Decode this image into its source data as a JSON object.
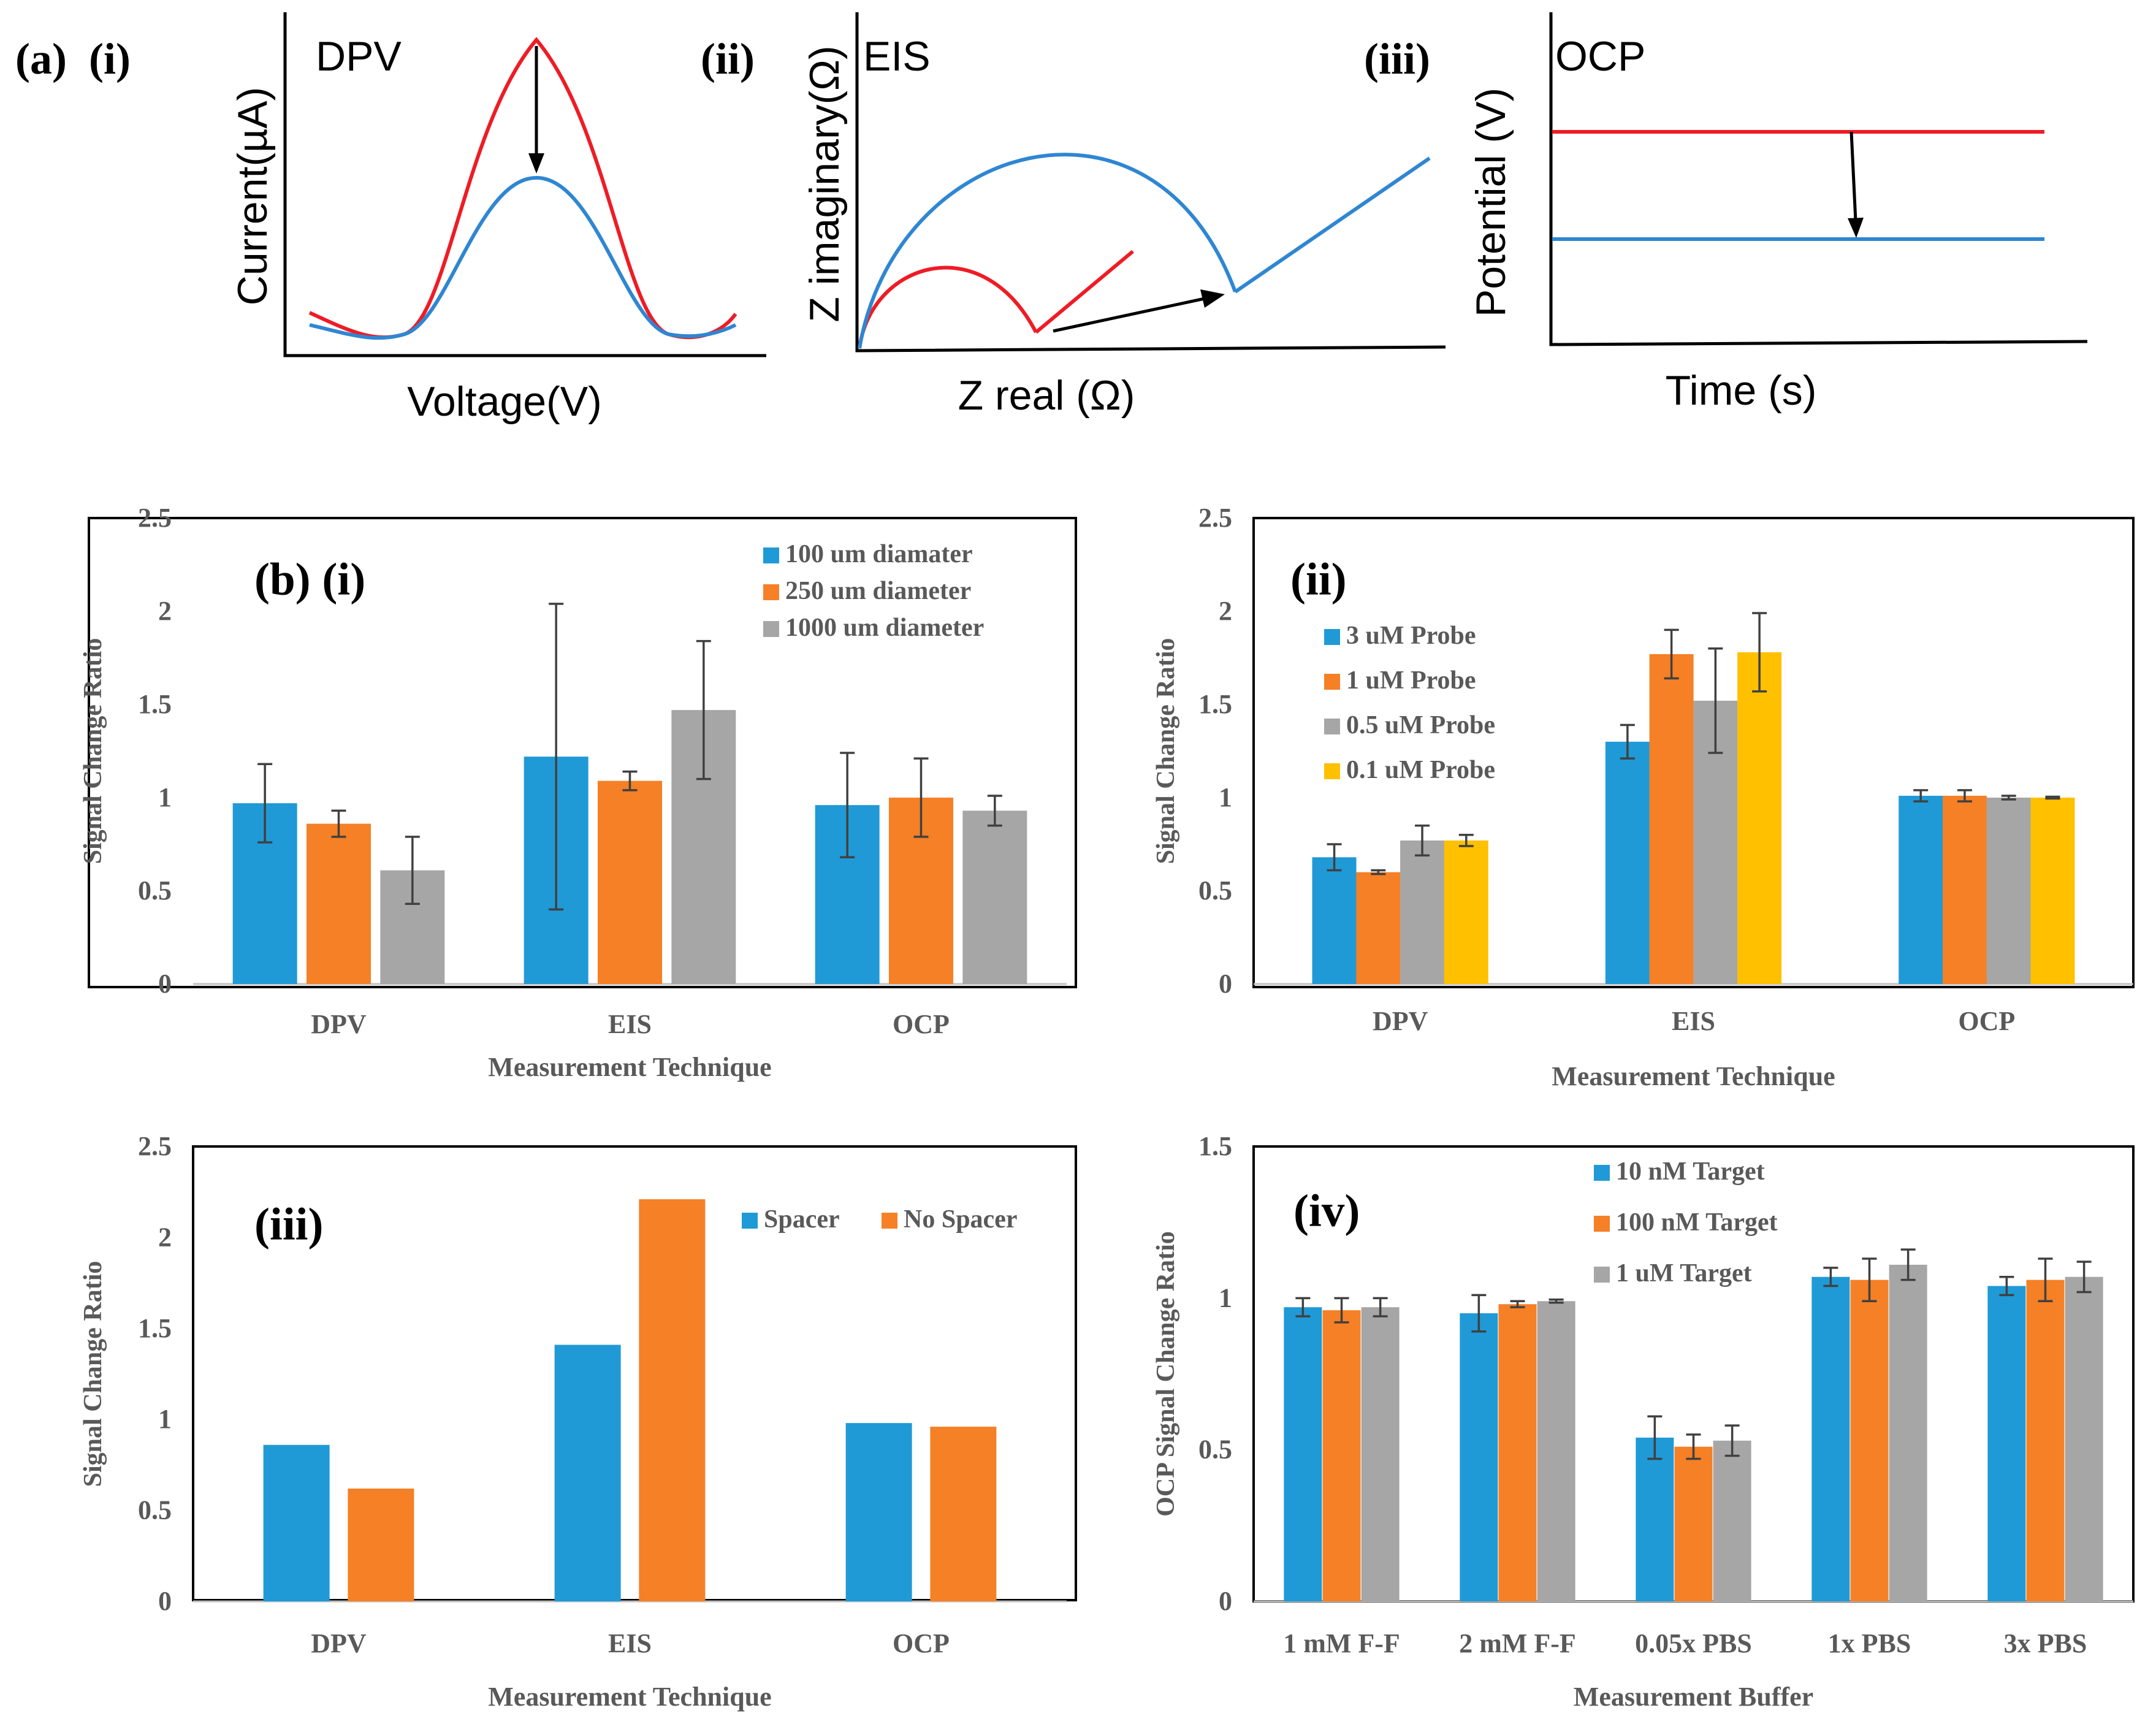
{
  "colors": {
    "blue": "#1f9ad6",
    "orange": "#f58026",
    "gray": "#a6a6a6",
    "yellow": "#ffc000",
    "red": "#ee1c25",
    "curve_blue": "#2f86d2",
    "axis": "#000000",
    "tick": "#595959"
  },
  "panel_a": {
    "label": "(a)",
    "sub_i": {
      "label": "(i)",
      "title": "DPV",
      "xlabel": "Voltage(V)",
      "ylabel": "Current(µA)"
    },
    "sub_ii": {
      "label": "(ii)",
      "title": "EIS",
      "xlabel": "Z real (Ω)",
      "ylabel": "Z imaginary(Ω)"
    },
    "sub_iii": {
      "label": "(iii)",
      "title": "OCP",
      "xlabel": "Time (s)",
      "ylabel": "Potential (V)"
    }
  },
  "chart_data": [
    {
      "id": "b_i",
      "type": "bar",
      "label": "(b) (i)",
      "categories": [
        "DPV",
        "EIS",
        "OCP"
      ],
      "series": [
        {
          "name": "100 um diamater",
          "color_key": "blue",
          "values": [
            0.97,
            1.22,
            0.96
          ],
          "errors": [
            0.21,
            0.82,
            0.28
          ]
        },
        {
          "name": "250 um diameter",
          "color_key": "orange",
          "values": [
            0.86,
            1.09,
            1.0
          ],
          "errors": [
            0.07,
            0.05,
            0.21
          ]
        },
        {
          "name": "1000 um diameter",
          "color_key": "gray",
          "values": [
            0.61,
            1.47,
            0.93
          ],
          "errors": [
            0.18,
            0.37,
            0.08
          ]
        }
      ],
      "xlabel": "Measurement Technique",
      "ylabel": "Signal Change Ratio",
      "ylim": [
        0,
        2.5
      ],
      "yticks": [
        "0",
        "0.5",
        "1",
        "1.5",
        "2",
        "2.5"
      ],
      "legend": "top-right"
    },
    {
      "id": "b_ii",
      "type": "bar",
      "label": "(ii)",
      "categories": [
        "DPV",
        "EIS",
        "OCP"
      ],
      "series": [
        {
          "name": "3 uM Probe",
          "color_key": "blue",
          "values": [
            0.68,
            1.3,
            1.01
          ],
          "errors": [
            0.07,
            0.09,
            0.03
          ]
        },
        {
          "name": "1 uM Probe",
          "color_key": "orange",
          "values": [
            0.6,
            1.77,
            1.01
          ],
          "errors": [
            0.01,
            0.13,
            0.03
          ]
        },
        {
          "name": "0.5 uM Probe",
          "color_key": "gray",
          "values": [
            0.77,
            1.52,
            1.0
          ],
          "errors": [
            0.08,
            0.28,
            0.01
          ]
        },
        {
          "name": "0.1 uM Probe",
          "color_key": "yellow",
          "values": [
            0.77,
            1.78,
            1.0
          ],
          "errors": [
            0.03,
            0.21,
            0.005
          ]
        }
      ],
      "xlabel": "Measurement Technique",
      "ylabel": "Signal Change Ratio",
      "ylim": [
        0,
        2.5
      ],
      "yticks": [
        "0",
        "0.5",
        "1",
        "1.5",
        "2",
        "2.5"
      ],
      "legend": "top-left"
    },
    {
      "id": "b_iii",
      "type": "bar",
      "label": "(iii)",
      "categories": [
        "DPV",
        "EIS",
        "OCP"
      ],
      "series": [
        {
          "name": "Spacer",
          "color_key": "blue",
          "values": [
            0.86,
            1.41,
            0.98
          ]
        },
        {
          "name": "No Spacer",
          "color_key": "orange",
          "values": [
            0.62,
            2.21,
            0.96
          ]
        }
      ],
      "xlabel": "Measurement Technique",
      "ylabel": "Signal Change Ratio",
      "ylim": [
        0,
        2.5
      ],
      "yticks": [
        "0",
        "0.5",
        "1",
        "1.5",
        "2",
        "2.5"
      ],
      "legend": "top-right"
    },
    {
      "id": "b_iv",
      "type": "bar",
      "label": "(iv)",
      "categories": [
        "1 mM F-F",
        "2 mM F-F",
        "0.05x PBS",
        "1x PBS",
        "3x PBS"
      ],
      "series": [
        {
          "name": "10 nM Target",
          "color_key": "blue",
          "values": [
            0.97,
            0.95,
            0.54,
            1.07,
            1.04
          ],
          "errors": [
            0.03,
            0.06,
            0.07,
            0.03,
            0.03
          ]
        },
        {
          "name": "100 nM Target",
          "color_key": "orange",
          "values": [
            0.96,
            0.98,
            0.51,
            1.06,
            1.06
          ],
          "errors": [
            0.04,
            0.01,
            0.04,
            0.07,
            0.07
          ]
        },
        {
          "name": "1 uM Target",
          "color_key": "gray",
          "values": [
            0.97,
            0.99,
            0.53,
            1.11,
            1.07
          ],
          "errors": [
            0.03,
            0.005,
            0.05,
            0.05,
            0.05
          ]
        }
      ],
      "xlabel": "Measurement Buffer",
      "ylabel": "OCP Signal Change Ratio",
      "ylim": [
        0,
        1.5
      ],
      "yticks": [
        "0",
        "0.5",
        "1",
        "1.5"
      ],
      "legend": "top-left"
    }
  ]
}
